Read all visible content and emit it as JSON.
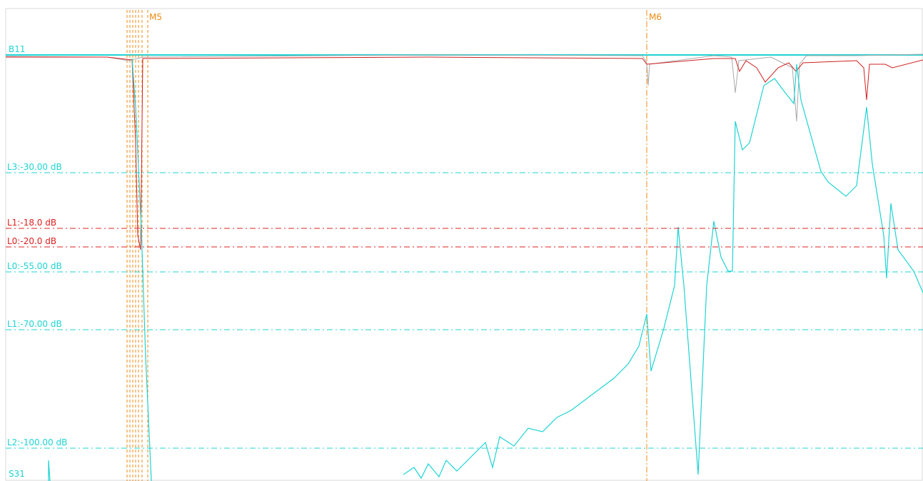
{
  "trace_labels": [
    "B11",
    "S31"
  ],
  "markers": [
    "M5",
    "M6"
  ],
  "limit_lines": [
    {
      "label": "L3:-30.00 dB",
      "color": "#1fd3d3"
    },
    {
      "label": "L1:-18.0 dB",
      "color": "#e02020"
    },
    {
      "label": "L0:-20.0 dB",
      "color": "#e02020"
    },
    {
      "label": "L0:-55.00 dB",
      "color": "#1fd3d3"
    },
    {
      "label": "L1:-70.00 dB",
      "color": "#1fd3d3"
    },
    {
      "label": "L2:-100.00 dB",
      "color": "#1fd3d3"
    }
  ]
}
